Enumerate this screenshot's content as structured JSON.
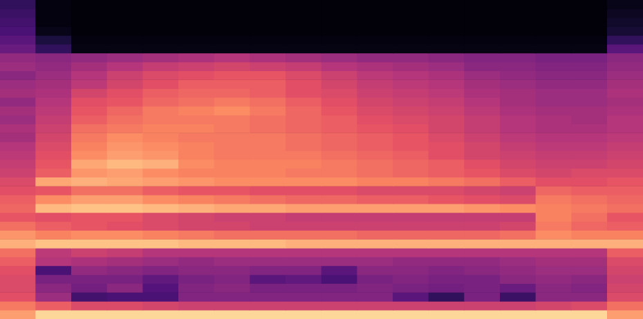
{
  "chart_data": {
    "type": "heatmap",
    "tick_labels": false,
    "zlim": [
      0,
      100
    ],
    "cells": [
      [
        18,
        2,
        1,
        1,
        1,
        1,
        1,
        1,
        1,
        1,
        1,
        1,
        1,
        1,
        1,
        1,
        1,
        4
      ],
      [
        20,
        2,
        1,
        1,
        1,
        1,
        1,
        1,
        1,
        1,
        1,
        1,
        1,
        1,
        1,
        1,
        1,
        6
      ],
      [
        22,
        2,
        1,
        1,
        1,
        1,
        1,
        1,
        1,
        1,
        1,
        1,
        1,
        1,
        1,
        1,
        1,
        8
      ],
      [
        24,
        4,
        1,
        1,
        1,
        1,
        1,
        1,
        1,
        1,
        1,
        1,
        1,
        1,
        1,
        1,
        1,
        10
      ],
      [
        28,
        12,
        2,
        2,
        2,
        2,
        2,
        2,
        2,
        2,
        2,
        2,
        2,
        2,
        2,
        2,
        2,
        18
      ],
      [
        32,
        18,
        3,
        3,
        3,
        3,
        3,
        3,
        3,
        3,
        3,
        3,
        3,
        3,
        3,
        3,
        3,
        28
      ],
      [
        42,
        40,
        42,
        44,
        46,
        48,
        50,
        48,
        46,
        44,
        42,
        42,
        40,
        38,
        38,
        36,
        36,
        40
      ],
      [
        44,
        42,
        46,
        50,
        54,
        56,
        58,
        56,
        54,
        50,
        48,
        46,
        44,
        40,
        40,
        38,
        38,
        42
      ],
      [
        40,
        44,
        50,
        56,
        60,
        62,
        64,
        64,
        60,
        56,
        52,
        50,
        48,
        44,
        42,
        40,
        40,
        44
      ],
      [
        44,
        46,
        52,
        58,
        62,
        66,
        66,
        66,
        62,
        58,
        54,
        52,
        50,
        46,
        44,
        42,
        42,
        46
      ],
      [
        46,
        48,
        58,
        62,
        66,
        68,
        68,
        66,
        62,
        60,
        56,
        54,
        52,
        48,
        46,
        44,
        44,
        48
      ],
      [
        42,
        50,
        62,
        64,
        68,
        70,
        72,
        70,
        66,
        62,
        58,
        56,
        54,
        50,
        46,
        44,
        44,
        46
      ],
      [
        46,
        52,
        64,
        68,
        72,
        74,
        76,
        72,
        68,
        64,
        60,
        58,
        56,
        52,
        48,
        46,
        46,
        48
      ],
      [
        44,
        54,
        66,
        70,
        72,
        72,
        72,
        70,
        68,
        66,
        62,
        60,
        58,
        54,
        50,
        48,
        46,
        50
      ],
      [
        48,
        56,
        70,
        72,
        74,
        74,
        72,
        70,
        68,
        66,
        64,
        62,
        58,
        54,
        50,
        48,
        48,
        50
      ],
      [
        46,
        58,
        72,
        76,
        74,
        72,
        72,
        72,
        70,
        68,
        66,
        64,
        60,
        56,
        52,
        50,
        50,
        52
      ],
      [
        50,
        60,
        74,
        78,
        76,
        74,
        72,
        72,
        70,
        68,
        66,
        64,
        62,
        58,
        54,
        52,
        52,
        54
      ],
      [
        52,
        62,
        76,
        80,
        78,
        74,
        72,
        72,
        72,
        70,
        68,
        66,
        62,
        58,
        56,
        54,
        54,
        56
      ],
      [
        54,
        64,
        82,
        86,
        84,
        76,
        74,
        74,
        74,
        72,
        70,
        68,
        66,
        62,
        58,
        56,
        56,
        58
      ],
      [
        56,
        66,
        78,
        80,
        76,
        74,
        74,
        74,
        72,
        72,
        70,
        68,
        66,
        64,
        60,
        58,
        60,
        60
      ],
      [
        60,
        82,
        84,
        82,
        80,
        78,
        76,
        76,
        76,
        76,
        74,
        74,
        72,
        70,
        66,
        62,
        62,
        64
      ],
      [
        62,
        64,
        70,
        70,
        66,
        64,
        64,
        62,
        62,
        62,
        60,
        60,
        60,
        58,
        56,
        68,
        66,
        66
      ],
      [
        66,
        76,
        80,
        80,
        76,
        74,
        72,
        70,
        68,
        68,
        66,
        66,
        64,
        62,
        60,
        72,
        70,
        68
      ],
      [
        68,
        86,
        88,
        88,
        86,
        84,
        82,
        82,
        80,
        80,
        80,
        80,
        80,
        78,
        76,
        74,
        72,
        70
      ],
      [
        64,
        62,
        64,
        64,
        60,
        58,
        56,
        56,
        54,
        54,
        54,
        54,
        54,
        54,
        54,
        74,
        70,
        64
      ],
      [
        70,
        66,
        64,
        62,
        60,
        58,
        58,
        56,
        56,
        56,
        56,
        56,
        56,
        56,
        58,
        72,
        68,
        66
      ],
      [
        78,
        74,
        76,
        76,
        74,
        72,
        70,
        70,
        70,
        70,
        68,
        68,
        68,
        68,
        70,
        76,
        74,
        74
      ],
      [
        84,
        88,
        88,
        88,
        88,
        86,
        86,
        86,
        84,
        84,
        84,
        84,
        84,
        84,
        84,
        84,
        84,
        84
      ],
      [
        70,
        52,
        56,
        54,
        50,
        50,
        50,
        50,
        50,
        50,
        50,
        50,
        50,
        50,
        50,
        50,
        50,
        66
      ],
      [
        66,
        50,
        48,
        46,
        44,
        42,
        44,
        44,
        44,
        44,
        44,
        42,
        42,
        42,
        44,
        46,
        46,
        60
      ],
      [
        62,
        24,
        42,
        40,
        38,
        40,
        40,
        38,
        38,
        28,
        40,
        40,
        38,
        40,
        42,
        44,
        44,
        58
      ],
      [
        60,
        36,
        36,
        36,
        30,
        36,
        38,
        28,
        30,
        24,
        36,
        38,
        36,
        36,
        40,
        42,
        40,
        56
      ],
      [
        60,
        40,
        34,
        40,
        26,
        38,
        40,
        36,
        36,
        36,
        38,
        36,
        34,
        36,
        32,
        40,
        38,
        58
      ],
      [
        62,
        44,
        22,
        24,
        24,
        38,
        38,
        38,
        38,
        38,
        38,
        28,
        18,
        36,
        20,
        40,
        40,
        60
      ],
      [
        72,
        66,
        60,
        60,
        58,
        56,
        56,
        56,
        56,
        56,
        56,
        56,
        56,
        56,
        56,
        58,
        60,
        70
      ],
      [
        80,
        92,
        92,
        92,
        92,
        92,
        92,
        92,
        92,
        92,
        92,
        92,
        92,
        92,
        92,
        92,
        92,
        80
      ]
    ]
  }
}
